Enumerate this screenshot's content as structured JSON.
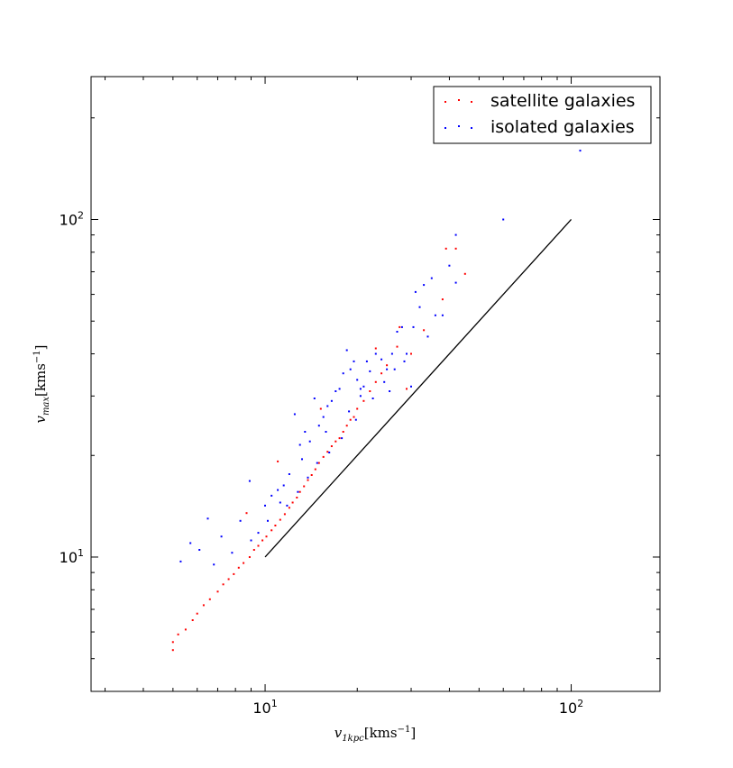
{
  "chart_data": {
    "type": "scatter",
    "xscale": "log",
    "yscale": "log",
    "xlim": [
      2.7,
      195
    ],
    "ylim": [
      4.0,
      265
    ],
    "xlabel_var": "v",
    "xlabel_sub": "1kpc",
    "xlabel_unit": "[kms",
    "xlabel_exp": "−1",
    "xlabel_close": "]",
    "ylabel_var": "v",
    "ylabel_sub": "max",
    "ylabel_unit": "[kms",
    "ylabel_exp": "−1",
    "ylabel_close": "]",
    "xticks": [
      {
        "value": 10,
        "base": "10",
        "exp": "1"
      },
      {
        "value": 100,
        "base": "10",
        "exp": "2"
      }
    ],
    "yticks": [
      {
        "value": 10,
        "base": "10",
        "exp": "1"
      },
      {
        "value": 100,
        "base": "10",
        "exp": "2"
      }
    ],
    "grid": false,
    "legend_position": "top-right",
    "reference_line": {
      "x": [
        10,
        100
      ],
      "y": [
        10,
        100
      ],
      "color": "#000000"
    },
    "series": [
      {
        "name": "satellite galaxies",
        "color": "#ff0000",
        "points": [
          [
            5.0,
            5.3
          ],
          [
            5.0,
            5.6
          ],
          [
            5.2,
            5.9
          ],
          [
            5.5,
            6.1
          ],
          [
            5.8,
            6.5
          ],
          [
            6.0,
            6.8
          ],
          [
            6.3,
            7.2
          ],
          [
            6.6,
            7.5
          ],
          [
            7.0,
            7.9
          ],
          [
            7.3,
            8.3
          ],
          [
            7.6,
            8.6
          ],
          [
            7.9,
            8.9
          ],
          [
            8.2,
            9.3
          ],
          [
            8.5,
            9.6
          ],
          [
            8.7,
            13.5
          ],
          [
            8.9,
            10.0
          ],
          [
            9.2,
            10.5
          ],
          [
            9.5,
            10.8
          ],
          [
            9.8,
            11.2
          ],
          [
            10.1,
            11.5
          ],
          [
            10.5,
            12.0
          ],
          [
            10.8,
            12.4
          ],
          [
            11.0,
            19.2
          ],
          [
            11.2,
            12.9
          ],
          [
            11.6,
            13.4
          ],
          [
            12.0,
            14.0
          ],
          [
            12.3,
            14.5
          ],
          [
            12.7,
            15.0
          ],
          [
            13.0,
            15.6
          ],
          [
            13.4,
            16.2
          ],
          [
            13.8,
            16.9
          ],
          [
            14.2,
            17.5
          ],
          [
            14.6,
            18.2
          ],
          [
            15.0,
            19.0
          ],
          [
            15.2,
            27.5
          ],
          [
            15.5,
            19.8
          ],
          [
            16.0,
            20.5
          ],
          [
            16.5,
            21.3
          ],
          [
            17.0,
            22.0
          ],
          [
            17.5,
            22.5
          ],
          [
            18.0,
            23.5
          ],
          [
            18.5,
            24.5
          ],
          [
            19.0,
            25.5
          ],
          [
            19.5,
            26.0
          ],
          [
            20.0,
            27.5
          ],
          [
            21.0,
            29.0
          ],
          [
            22.0,
            31.0
          ],
          [
            23.0,
            33.0
          ],
          [
            23.0,
            41.5
          ],
          [
            24.0,
            35.0
          ],
          [
            25.0,
            37.0
          ],
          [
            27.0,
            42.0
          ],
          [
            27.5,
            48.0
          ],
          [
            29.0,
            31.5
          ],
          [
            30.0,
            40.0
          ],
          [
            33.0,
            47.0
          ],
          [
            38.0,
            58.0
          ],
          [
            39.0,
            82.0
          ],
          [
            42.0,
            82.0
          ],
          [
            45.0,
            69.0
          ]
        ]
      },
      {
        "name": "isolated galaxies",
        "color": "#0000ff",
        "points": [
          [
            5.3,
            9.7
          ],
          [
            5.7,
            11.0
          ],
          [
            6.5,
            13.0
          ],
          [
            6.1,
            10.5
          ],
          [
            7.2,
            11.5
          ],
          [
            8.3,
            12.8
          ],
          [
            8.9,
            16.8
          ],
          [
            10.0,
            14.2
          ],
          [
            10.5,
            15.2
          ],
          [
            11.0,
            15.8
          ],
          [
            11.5,
            16.3
          ],
          [
            12.0,
            17.6
          ],
          [
            12.5,
            26.5
          ],
          [
            13.0,
            21.5
          ],
          [
            13.5,
            23.5
          ],
          [
            14.0,
            22.0
          ],
          [
            14.5,
            29.5
          ],
          [
            15.0,
            24.5
          ],
          [
            15.5,
            26.0
          ],
          [
            16.0,
            28.0
          ],
          [
            16.5,
            29.0
          ],
          [
            17.0,
            31.0
          ],
          [
            17.5,
            31.5
          ],
          [
            18.0,
            35.0
          ],
          [
            18.5,
            41.0
          ],
          [
            19.0,
            36.0
          ],
          [
            19.5,
            38.0
          ],
          [
            20.0,
            33.5
          ],
          [
            21.0,
            32.0
          ],
          [
            21.5,
            38.0
          ],
          [
            22.0,
            35.5
          ],
          [
            23.0,
            40.0
          ],
          [
            24.0,
            38.5
          ],
          [
            25.0,
            36.0
          ],
          [
            26.0,
            40.0
          ],
          [
            27.0,
            46.5
          ],
          [
            28.0,
            48.0
          ],
          [
            29.0,
            40.0
          ],
          [
            30.0,
            32.0
          ],
          [
            31.0,
            61.0
          ],
          [
            32.0,
            55.0
          ],
          [
            33.0,
            64.0
          ],
          [
            34.0,
            45.0
          ],
          [
            35.0,
            67.0
          ],
          [
            36.0,
            52.0
          ],
          [
            38.0,
            52.0
          ],
          [
            40.0,
            73.0
          ],
          [
            42.0,
            65.0
          ],
          [
            42.0,
            90.0
          ],
          [
            60.0,
            100.0
          ],
          [
            107.0,
            160.0
          ],
          [
            9.5,
            11.8
          ],
          [
            10.2,
            12.8
          ],
          [
            11.8,
            14.2
          ],
          [
            12.8,
            15.6
          ],
          [
            13.8,
            17.2
          ],
          [
            14.8,
            19.0
          ],
          [
            16.2,
            20.4
          ],
          [
            17.8,
            22.5
          ],
          [
            19.8,
            25.5
          ],
          [
            20.5,
            30.0
          ],
          [
            22.5,
            29.5
          ],
          [
            24.5,
            33.0
          ],
          [
            25.5,
            31.0
          ],
          [
            26.5,
            36.0
          ],
          [
            28.5,
            38.0
          ],
          [
            30.5,
            48.0
          ],
          [
            20.5,
            31.5
          ],
          [
            18.8,
            27.0
          ],
          [
            15.8,
            23.5
          ],
          [
            13.2,
            19.5
          ],
          [
            11.2,
            14.5
          ],
          [
            9.0,
            11.2
          ],
          [
            7.8,
            10.3
          ],
          [
            6.8,
            9.5
          ]
        ]
      }
    ]
  }
}
